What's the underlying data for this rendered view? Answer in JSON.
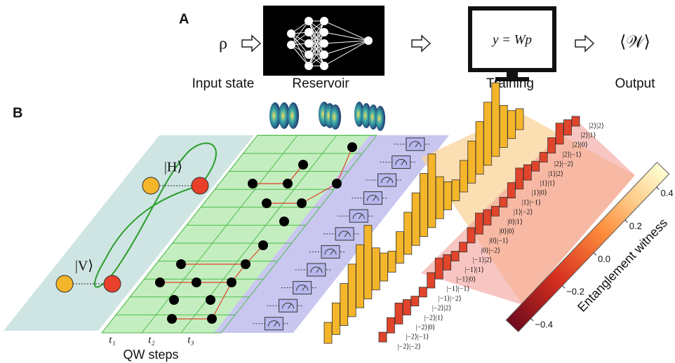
{
  "panel_a": {
    "label": "A",
    "input_symbol": "ρ",
    "input_label": "Input state",
    "reservoir_label": "Reservoir",
    "training_formula": "y = Wp",
    "training_label": "Training",
    "output_symbol": "⟨𝒲⟩",
    "output_label": "Output"
  },
  "panel_b": {
    "label": "B",
    "h_state": "|H⟩",
    "v_state": "|V⟩",
    "steps": [
      "t₁",
      "t₂",
      "t₃"
    ],
    "steps_label": "QW steps",
    "kets": [
      "|2⟩|2⟩",
      "|2⟩|1⟩",
      "|2⟩|0⟩",
      "|2⟩|−1⟩",
      "|2⟩|−2⟩",
      "|1⟩|2⟩",
      "|1⟩|1⟩",
      "|1⟩|0⟩",
      "|1⟩|−1⟩",
      "|1⟩|−2⟩",
      "|0⟩|1⟩",
      "|0⟩|0⟩",
      "|0⟩|−1⟩",
      "|0⟩|−2⟩",
      "|−1⟩|2⟩",
      "|−1⟩|1⟩",
      "|−1⟩|0⟩",
      "|−1⟩|−1⟩",
      "|−1⟩|−2⟩",
      "|−2⟩|2⟩",
      "|−2⟩|1⟩",
      "|−2⟩|0⟩",
      "|−2⟩|−1⟩",
      "|−2⟩|−2⟩"
    ],
    "colorbar": {
      "label": "Entanglement witness",
      "lim": [
        -0.48,
        0.48
      ],
      "ticks": [
        0.4,
        0.2,
        {
          "value": 0,
          "label": "0.0"
        },
        {
          "value": -0.2,
          "label": "−0.2"
        },
        {
          "value": -0.4,
          "label": "−0.4"
        }
      ]
    }
  }
}
